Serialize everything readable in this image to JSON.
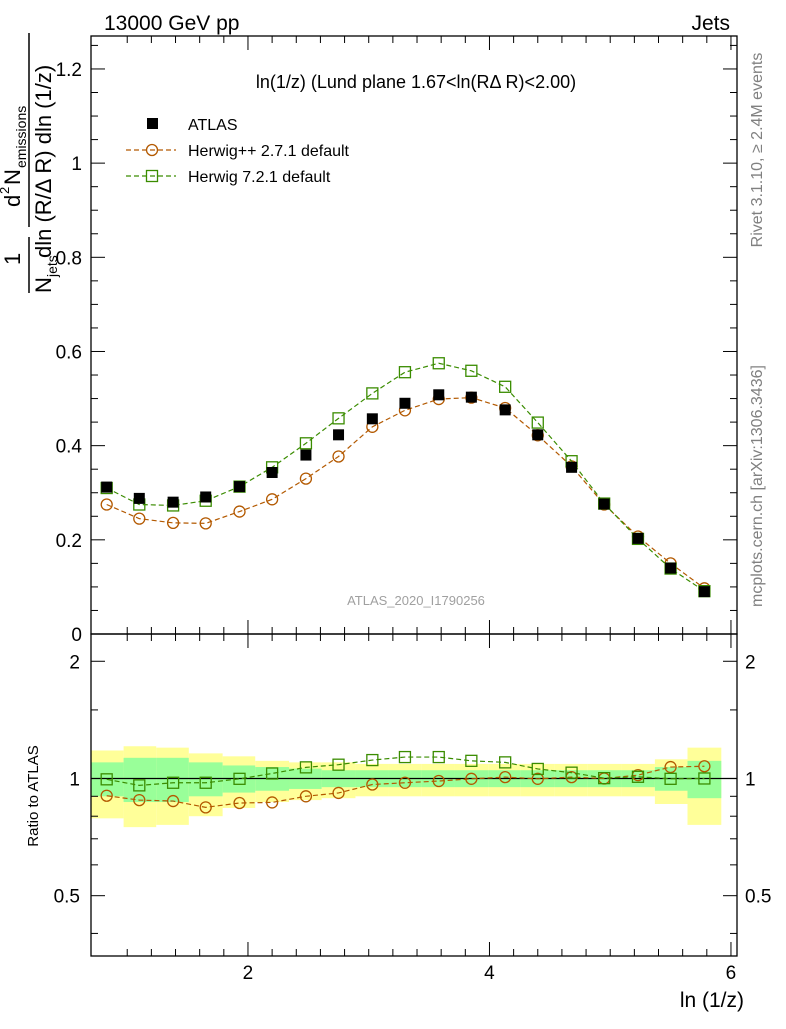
{
  "header": {
    "left": "13000 GeV pp",
    "right": "Jets"
  },
  "side_labels": {
    "rivet": "Rivet 3.1.10, ≥ 2.4M events",
    "mcplots": "mcplots.cern.ch [arXiv:1306.3436]"
  },
  "ratio_ylabel": "Ratio to ATLAS",
  "chart_data": [
    {
      "type": "scatter",
      "title": "ln(1/z) (Lund plane 1.67<ln(RΔ R)<2.00)",
      "xlabel": "ln (1/z)",
      "ylabel": "1/N_jets d²N_emissions / dln(R/Δ R) dln(1/z)",
      "watermark": "ATLAS_2020_I1790256",
      "xlim": [
        0.7,
        6.05
      ],
      "ylim": [
        0,
        1.27
      ],
      "y_ticks": [
        "0",
        "0.2",
        "0.4",
        "0.6",
        "0.8",
        "1",
        "1.2"
      ],
      "x_ticks": [
        "2",
        "4",
        "6"
      ],
      "legend_position": "top-left",
      "x": [
        0.83,
        1.1,
        1.38,
        1.65,
        1.93,
        2.2,
        2.48,
        2.75,
        3.03,
        3.3,
        3.58,
        3.85,
        4.13,
        4.4,
        4.68,
        4.95,
        5.23,
        5.5,
        5.78
      ],
      "series": [
        {
          "name": "ATLAS",
          "marker": "filled-square",
          "color": "#000000",
          "values": [
            0.312,
            0.288,
            0.28,
            0.291,
            0.313,
            0.343,
            0.38,
            0.423,
            0.457,
            0.49,
            0.508,
            0.503,
            0.476,
            0.423,
            0.354,
            0.276,
            0.203,
            0.14,
            0.09
          ]
        },
        {
          "name": "Herwig++ 2.7.1 default",
          "marker": "open-circle",
          "color": "#b35900",
          "values": [
            0.275,
            0.245,
            0.236,
            0.235,
            0.26,
            0.286,
            0.33,
            0.377,
            0.44,
            0.475,
            0.499,
            0.502,
            0.48,
            0.422,
            0.356,
            0.275,
            0.207,
            0.15,
            0.097
          ]
        },
        {
          "name": "Herwig 7.2.1 default",
          "marker": "open-square",
          "color": "#3a8c00",
          "values": [
            0.31,
            0.275,
            0.273,
            0.283,
            0.313,
            0.354,
            0.405,
            0.458,
            0.511,
            0.556,
            0.575,
            0.559,
            0.525,
            0.449,
            0.367,
            0.277,
            0.202,
            0.139,
            0.091
          ]
        }
      ]
    },
    {
      "type": "scatter",
      "title": "",
      "xlabel": "ln (1/z)",
      "ylabel": "Ratio to ATLAS",
      "xlim": [
        0.7,
        6.05
      ],
      "ylim": [
        0.35,
        2.35
      ],
      "y_ticks": [
        "0.5",
        "1",
        "2"
      ],
      "reference_line": 1,
      "x_edges": [
        0.7,
        0.97,
        1.24,
        1.51,
        1.79,
        2.06,
        2.34,
        2.61,
        2.89,
        3.16,
        3.44,
        3.71,
        3.99,
        4.26,
        4.54,
        4.81,
        5.09,
        5.37,
        5.64,
        5.92
      ],
      "band_inner": {
        "color": "#99ff99",
        "lower": [
          0.9,
          0.87,
          0.87,
          0.9,
          0.92,
          0.93,
          0.94,
          0.95,
          0.95,
          0.95,
          0.95,
          0.95,
          0.95,
          0.95,
          0.95,
          0.95,
          0.95,
          0.93,
          0.89
        ],
        "upper": [
          1.1,
          1.13,
          1.13,
          1.1,
          1.08,
          1.07,
          1.06,
          1.05,
          1.05,
          1.05,
          1.05,
          1.05,
          1.05,
          1.05,
          1.05,
          1.05,
          1.05,
          1.07,
          1.11
        ]
      },
      "band_outer": {
        "color": "#ffff99",
        "lower": [
          0.79,
          0.75,
          0.76,
          0.8,
          0.84,
          0.87,
          0.88,
          0.89,
          0.9,
          0.9,
          0.9,
          0.9,
          0.9,
          0.9,
          0.9,
          0.9,
          0.9,
          0.86,
          0.76
        ],
        "upper": [
          1.18,
          1.21,
          1.2,
          1.16,
          1.14,
          1.11,
          1.1,
          1.1,
          1.09,
          1.09,
          1.09,
          1.09,
          1.09,
          1.09,
          1.09,
          1.09,
          1.09,
          1.12,
          1.2
        ]
      },
      "x": [
        0.83,
        1.1,
        1.38,
        1.65,
        1.93,
        2.2,
        2.48,
        2.75,
        3.03,
        3.3,
        3.58,
        3.85,
        4.13,
        4.4,
        4.68,
        4.95,
        5.23,
        5.5,
        5.78
      ],
      "series": [
        {
          "name": "Herwig++ 2.7.1 default",
          "marker": "open-circle",
          "color": "#b35900",
          "values": [
            0.903,
            0.88,
            0.875,
            0.843,
            0.865,
            0.868,
            0.9,
            0.918,
            0.965,
            0.975,
            0.985,
            0.998,
            1.008,
            0.998,
            1.008,
            1.0,
            1.02,
            1.07,
            1.075
          ]
        },
        {
          "name": "Herwig 7.2.1 default",
          "marker": "open-square",
          "color": "#3a8c00",
          "values": [
            0.995,
            0.96,
            0.975,
            0.975,
            0.998,
            1.03,
            1.068,
            1.085,
            1.115,
            1.135,
            1.135,
            1.11,
            1.1,
            1.058,
            1.035,
            1.002,
            1.01,
            0.998,
            1.0
          ]
        }
      ]
    }
  ]
}
